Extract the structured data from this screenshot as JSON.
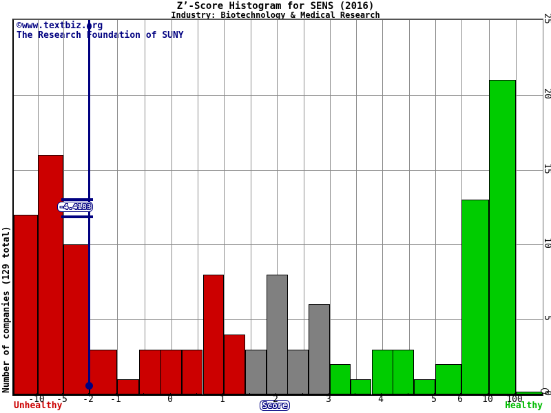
{
  "chart_data": {
    "type": "bar",
    "title": "Z’-Score Histogram for SENS (2016)",
    "subtitle": "Industry: Biotechnology & Medical Research",
    "ylabel": "Number of companies (129 total)",
    "xlabel": "Score",
    "total_companies": 129,
    "credit_line1": "©www.textbiz.org",
    "credit_line2": "The Research Foundation of SUNY",
    "footer": {
      "left": "Unhealthy",
      "center": "Score",
      "right": "Healthy"
    },
    "marker": {
      "label": "-4.4183",
      "value": -4.4183,
      "color": "#000080"
    },
    "zone_colors": {
      "unhealthy": "#cc0000",
      "gray": "#808080",
      "healthy": "#00cc00"
    },
    "ylim": [
      0,
      25
    ],
    "grid": true,
    "legend_position": "none",
    "y_ticks": [
      0,
      5,
      10,
      15,
      20,
      25
    ],
    "y_gridline_values": [
      5,
      10,
      15,
      20
    ],
    "x_tick_values": [
      -10,
      -5,
      -2,
      -1,
      0,
      1,
      2,
      3,
      4,
      5,
      6,
      10,
      100
    ],
    "x_tick_labels": [
      "-10",
      "-5",
      "-2",
      "-1",
      "0",
      "1",
      "2",
      "3",
      "4",
      "5",
      "6",
      "10",
      "100"
    ],
    "x_gridline_values": [
      -10,
      -5,
      -2,
      -1,
      -0.5,
      0,
      0.5,
      1,
      1.5,
      2,
      2.5,
      3,
      3.5,
      4,
      4.5,
      5,
      6,
      10,
      100
    ],
    "bins": [
      {
        "range": [
          null,
          -10
        ],
        "label": "< -10",
        "count": 12,
        "zone": "unhealthy"
      },
      {
        "range": [
          -10,
          -5
        ],
        "label": "-10 to -5",
        "count": 16,
        "zone": "unhealthy"
      },
      {
        "range": [
          -5,
          -2
        ],
        "label": "-5 to -2",
        "count": 10,
        "zone": "unhealthy"
      },
      {
        "range": [
          -2,
          -1
        ],
        "label": "-2 to -1",
        "count": 3,
        "zone": "unhealthy"
      },
      {
        "range": [
          -1,
          -0.6
        ],
        "label": "-1 to -0.6",
        "count": 1,
        "zone": "unhealthy"
      },
      {
        "range": [
          -0.6,
          -0.2
        ],
        "label": "-0.6 to -0.2",
        "count": 3,
        "zone": "unhealthy"
      },
      {
        "range": [
          -0.2,
          0.2
        ],
        "label": "-0.2 to 0.2",
        "count": 3,
        "zone": "unhealthy"
      },
      {
        "range": [
          0.2,
          0.6
        ],
        "label": "0.2 to 0.6",
        "count": 3,
        "zone": "unhealthy"
      },
      {
        "range": [
          0.6,
          1
        ],
        "label": "0.6 to 1",
        "count": 8,
        "zone": "unhealthy"
      },
      {
        "range": [
          1,
          1.4
        ],
        "label": "1 to 1.4",
        "count": 4,
        "zone": "unhealthy"
      },
      {
        "range": [
          1.4,
          1.8
        ],
        "label": "1.4 to 1.8",
        "count": 3,
        "zone": "gray"
      },
      {
        "range": [
          1.8,
          2.2
        ],
        "label": "1.8 to 2.2",
        "count": 8,
        "zone": "gray"
      },
      {
        "range": [
          2.2,
          2.6
        ],
        "label": "2.2 to 2.6",
        "count": 3,
        "zone": "gray"
      },
      {
        "range": [
          2.6,
          3
        ],
        "label": "2.6 to 3",
        "count": 6,
        "zone": "gray"
      },
      {
        "range": [
          3,
          3.4
        ],
        "label": "3 to 3.4",
        "count": 2,
        "zone": "healthy"
      },
      {
        "range": [
          3.4,
          3.8
        ],
        "label": "3.4 to 3.8",
        "count": 1,
        "zone": "healthy"
      },
      {
        "range": [
          3.8,
          4.2
        ],
        "label": "3.8 to 4.2",
        "count": 3,
        "zone": "healthy"
      },
      {
        "range": [
          4.2,
          4.6
        ],
        "label": "4.2 to 4.6",
        "count": 3,
        "zone": "healthy"
      },
      {
        "range": [
          4.6,
          5
        ],
        "label": "4.6 to 5",
        "count": 1,
        "zone": "healthy"
      },
      {
        "range": [
          5,
          6
        ],
        "label": "5 to 6",
        "count": 2,
        "zone": "healthy"
      },
      {
        "range": [
          6,
          10
        ],
        "label": "6 to 10",
        "count": 13,
        "zone": "healthy"
      },
      {
        "range": [
          10,
          100
        ],
        "label": "10 to 100",
        "count": 21,
        "zone": "healthy"
      },
      {
        "range": [
          100,
          null
        ],
        "label": "> 100",
        "count": 0,
        "zone": "healthy"
      }
    ]
  }
}
